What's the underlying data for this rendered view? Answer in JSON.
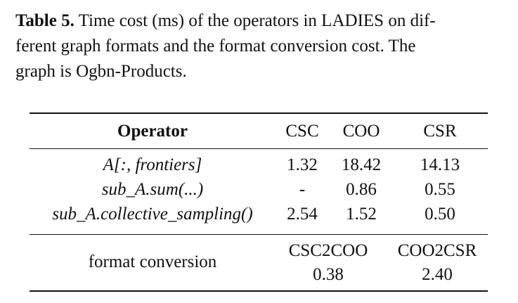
{
  "caption": {
    "label": "Table 5.",
    "line1": " Time cost (ms) of the operators in LADIES on dif-",
    "line2": "ferent graph formats and the format conversion cost. The",
    "line3": "graph is Ogbn-Products."
  },
  "table": {
    "headers": [
      "Operator",
      "CSC",
      "COO",
      "CSR"
    ],
    "rows": [
      {
        "operator": "A[:, frontiers]",
        "csc": "1.32",
        "coo": "18.42",
        "csr": "14.13"
      },
      {
        "operator": "sub_A.sum(...)",
        "csc": "-",
        "coo": "0.86",
        "csr": "0.55"
      },
      {
        "operator": "sub_A.collective_sampling()",
        "csc": "2.54",
        "coo": "1.52",
        "csr": "0.50"
      }
    ],
    "conversion": {
      "label": "format conversion",
      "types": [
        "CSC2COO",
        "COO2CSR"
      ],
      "values": [
        "0.38",
        "2.40"
      ]
    }
  }
}
